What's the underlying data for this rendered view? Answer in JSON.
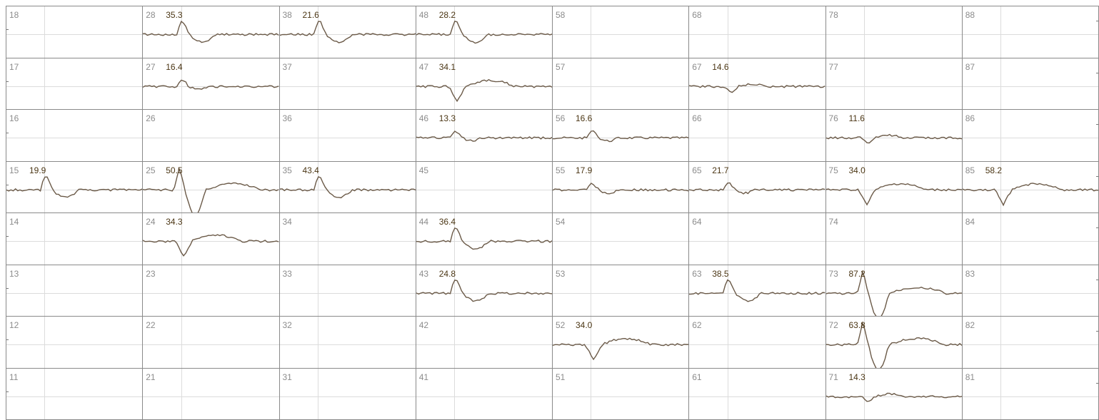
{
  "grid": {
    "rows": [
      [
        "18",
        "28",
        "38",
        "48",
        "58",
        "68",
        "78",
        "88"
      ],
      [
        "17",
        "27",
        "37",
        "47",
        "57",
        "67",
        "77",
        "87"
      ],
      [
        "16",
        "26",
        "36",
        "46",
        "56",
        "66",
        "76",
        "86"
      ],
      [
        "15",
        "25",
        "35",
        "45",
        "55",
        "65",
        "75",
        "85"
      ],
      [
        "14",
        "24",
        "34",
        "44",
        "54",
        "64",
        "74",
        "84"
      ],
      [
        "13",
        "23",
        "33",
        "43",
        "53",
        "63",
        "73",
        "83"
      ],
      [
        "12",
        "22",
        "32",
        "42",
        "52",
        "62",
        "72",
        "82"
      ],
      [
        "11",
        "21",
        "31",
        "41",
        "51",
        "61",
        "71",
        "81"
      ]
    ],
    "values": {
      "28": "35.3",
      "38": "21.6",
      "48": "28.2",
      "27": "16.4",
      "47": "34.1",
      "67": "14.6",
      "46": "13.3",
      "56": "16.6",
      "76": "11.6",
      "15": "19.9",
      "25": "50.5",
      "35": "43.4",
      "55": "17.9",
      "65": "21.7",
      "75": "34.0",
      "85": "58.2",
      "24": "34.3",
      "44": "36.4",
      "43": "24.8",
      "63": "38.5",
      "73": "87.2",
      "52": "34.0",
      "72": "63.8",
      "71": "14.3"
    },
    "waveforms": {
      "28": "positive-spike",
      "38": "positive-spike",
      "48": "positive-spike",
      "27": "small-positive",
      "47": "negative-dip",
      "67": "small-negative",
      "46": "small-positive",
      "56": "small-positive",
      "76": "small-negative",
      "15": "positive-spike",
      "25": "large-biphasic",
      "35": "positive-spike",
      "55": "small-positive",
      "65": "small-positive",
      "75": "negative-dip",
      "85": "negative-dip",
      "24": "negative-dip",
      "44": "positive-spike",
      "43": "positive-spike",
      "63": "positive-spike",
      "73": "large-biphasic",
      "52": "negative-dip",
      "72": "large-biphasic",
      "71": "small-negative"
    }
  },
  "colors": {
    "trace": "#6b5a48",
    "label": "#8c8c8c",
    "value": "#4b3614",
    "grid": "#8a8a8a"
  }
}
